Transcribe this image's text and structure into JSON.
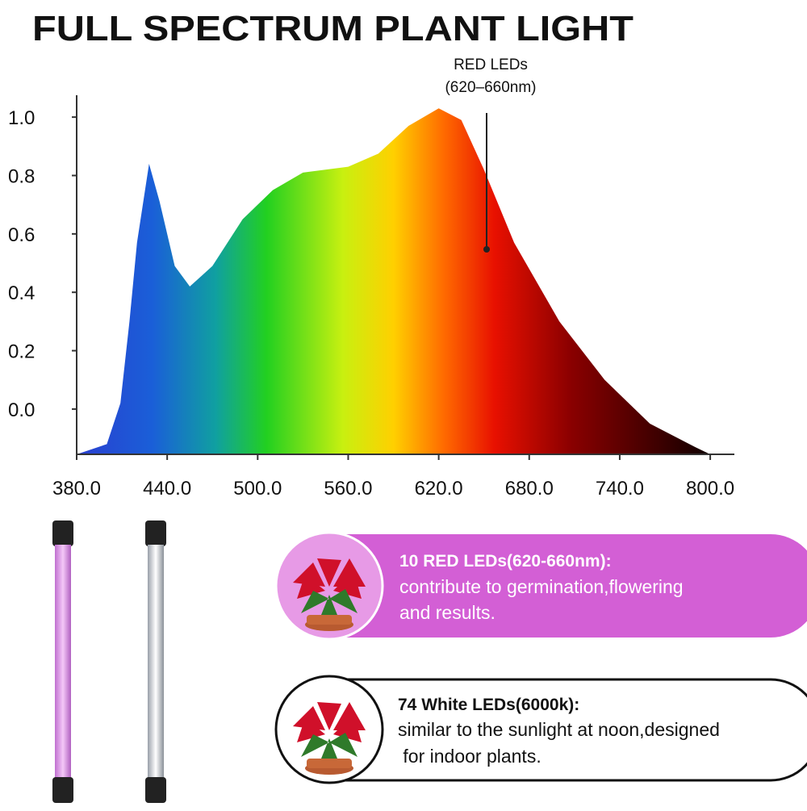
{
  "chart_data": {
    "type": "area",
    "title": "FULL SPECTRUM PLANT LIGHT",
    "annotations": [
      "RED LEDs",
      "(620–660nm)"
    ],
    "x": [
      380,
      400,
      409,
      415,
      420,
      428,
      435,
      445,
      455,
      470,
      490,
      510,
      530,
      560,
      580,
      600,
      620,
      635,
      650,
      670,
      700,
      730,
      760,
      790,
      800
    ],
    "y": [
      -0.155,
      -0.12,
      0.02,
      0.3,
      0.57,
      0.84,
      0.71,
      0.49,
      0.42,
      0.49,
      0.65,
      0.75,
      0.81,
      0.83,
      0.875,
      0.97,
      1.03,
      0.99,
      0.82,
      0.57,
      0.3,
      0.1,
      -0.05,
      -0.13,
      -0.155
    ],
    "xlim": [
      380,
      816
    ],
    "ylim": [
      -0.155,
      1.075
    ],
    "xticks": [
      {
        "value": 380,
        "label": "380.0"
      },
      {
        "value": 440,
        "label": "440.0"
      },
      {
        "value": 500,
        "label": "500.0"
      },
      {
        "value": 560,
        "label": "560.0"
      },
      {
        "value": 620,
        "label": "620.0"
      },
      {
        "value": 680,
        "label": "680.0"
      },
      {
        "value": 740,
        "label": "740.0"
      },
      {
        "value": 800,
        "label": "800.0"
      }
    ],
    "yticks": [
      {
        "value": 0,
        "label": "0.0"
      },
      0.2,
      0.4,
      0.6,
      0.8,
      {
        "value": 1,
        "label": "1.0"
      }
    ]
  },
  "cards": [
    {
      "title": "10 RED LEDs(620-660nm):",
      "lines": [
        "contribute to germination,flowering",
        "and results."
      ]
    },
    {
      "title": "74 White LEDs(6000k):",
      "lines": [
        "similar to the sunlight at noon,designed",
        " for indoor plants."
      ]
    }
  ]
}
